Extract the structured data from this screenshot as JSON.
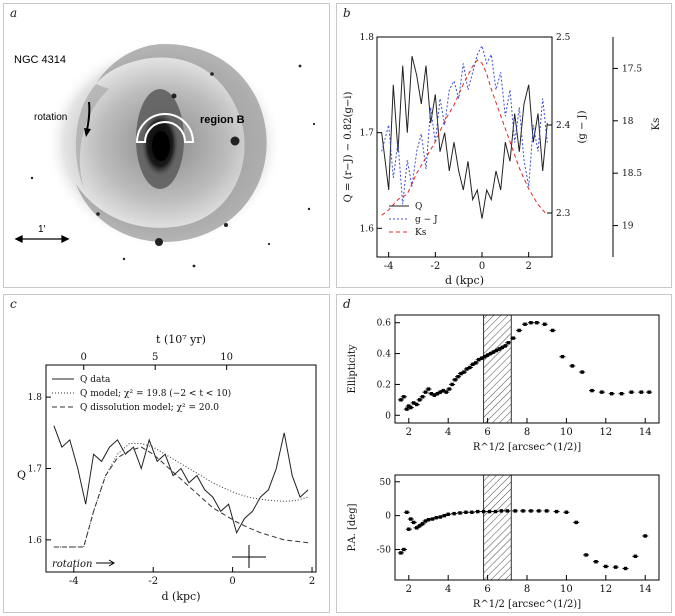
{
  "panels": {
    "a": {
      "letter": "a",
      "galaxy": "NGC 4314",
      "rotation_label": "rotation",
      "region_label": "region B",
      "scale_label": "1′"
    },
    "b": {
      "letter": "b",
      "ylabel_left": "Q = (r−J) − 0.82(g−i)",
      "ylabel_mid": "(g − J)",
      "ylabel_right": "Ks",
      "xlabel": "d (kpc)",
      "legend": [
        "Q",
        "g − J",
        "Ks"
      ]
    },
    "c": {
      "letter": "c",
      "xlabel_bottom": "d (kpc)",
      "xlabel_top": "t (10⁷ yr)",
      "ylabel": "Q",
      "legend": [
        "Q data",
        "Q model; χ² = 19.8 (−2 < t < 10)",
        "Q dissolution model; χ² = 20.0"
      ],
      "rotation_label": "rotation"
    },
    "d": {
      "letter": "d",
      "top_ylabel": "Ellipticity",
      "bottom_ylabel": "P.A. [deg]",
      "xlabel": "R^1/2 [arcsec^(1/2)]"
    }
  },
  "chart_data": [
    {
      "id": "b",
      "type": "line",
      "xlabel": "d (kpc)",
      "xlim": [
        -4.5,
        3
      ],
      "xticks": [
        -4,
        -2,
        0,
        2
      ],
      "left_axis": {
        "label": "Q = (r−J) − 0.82(g−i)",
        "ylim": [
          1.57,
          1.8
        ],
        "ticks": [
          1.6,
          1.7,
          1.8
        ],
        "reversed": true
      },
      "mid_axis": {
        "label": "(g − J)",
        "ylim": [
          2.25,
          2.5
        ],
        "ticks": [
          2.3,
          2.4,
          2.5
        ]
      },
      "right_axis": {
        "label": "Ks",
        "ylim": [
          19.3,
          17.2
        ],
        "ticks": [
          17.5,
          18,
          18.5,
          19
        ]
      },
      "series": [
        {
          "name": "Q",
          "color": "#222222",
          "dash": "",
          "x": [
            -4.3,
            -4.0,
            -3.8,
            -3.6,
            -3.4,
            -3.2,
            -3.0,
            -2.8,
            -2.6,
            -2.4,
            -2.2,
            -2.0,
            -1.8,
            -1.6,
            -1.4,
            -1.2,
            -1.0,
            -0.8,
            -0.6,
            -0.4,
            -0.2,
            0.0,
            0.2,
            0.4,
            0.6,
            0.8,
            1.0,
            1.2,
            1.4,
            1.6,
            1.8,
            2.0,
            2.2,
            2.4,
            2.6,
            2.8
          ],
          "y": [
            1.7,
            1.64,
            1.75,
            1.68,
            1.77,
            1.7,
            1.78,
            1.76,
            1.73,
            1.77,
            1.71,
            1.74,
            1.68,
            1.7,
            1.66,
            1.69,
            1.66,
            1.64,
            1.67,
            1.63,
            1.64,
            1.61,
            1.64,
            1.63,
            1.66,
            1.64,
            1.69,
            1.67,
            1.72,
            1.68,
            1.73,
            1.75,
            1.69,
            1.72,
            1.66,
            1.71
          ]
        },
        {
          "name": "g − J",
          "axis": "mid",
          "color": "#3b4bd8",
          "dash": "2,2",
          "x": [
            -4.3,
            -4.0,
            -3.8,
            -3.6,
            -3.4,
            -3.2,
            -3.0,
            -2.8,
            -2.6,
            -2.4,
            -2.2,
            -2.0,
            -1.8,
            -1.6,
            -1.4,
            -1.2,
            -1.0,
            -0.8,
            -0.6,
            -0.4,
            -0.2,
            0.0,
            0.2,
            0.4,
            0.6,
            0.8,
            1.0,
            1.2,
            1.4,
            1.6,
            1.8,
            2.0,
            2.2,
            2.4,
            2.6,
            2.8
          ],
          "y": [
            2.37,
            2.4,
            2.34,
            2.38,
            2.31,
            2.36,
            2.33,
            2.37,
            2.39,
            2.35,
            2.42,
            2.38,
            2.43,
            2.4,
            2.44,
            2.45,
            2.43,
            2.47,
            2.44,
            2.46,
            2.48,
            2.49,
            2.47,
            2.48,
            2.44,
            2.46,
            2.41,
            2.44,
            2.38,
            2.42,
            2.36,
            2.33,
            2.4,
            2.37,
            2.43,
            2.38
          ]
        },
        {
          "name": "Ks",
          "axis": "right",
          "color": "#e02828",
          "dash": "4,3",
          "x": [
            -4.3,
            -4.0,
            -3.6,
            -3.2,
            -2.8,
            -2.4,
            -2.0,
            -1.6,
            -1.2,
            -0.8,
            -0.4,
            -0.2,
            0.0,
            0.2,
            0.4,
            0.8,
            1.2,
            1.6,
            2.0,
            2.4,
            2.8
          ],
          "y": [
            18.9,
            18.85,
            18.75,
            18.7,
            18.5,
            18.35,
            18.2,
            18.0,
            17.85,
            17.65,
            17.48,
            17.42,
            17.45,
            17.55,
            17.7,
            17.95,
            18.2,
            18.45,
            18.65,
            18.8,
            18.9
          ]
        }
      ]
    },
    {
      "id": "c",
      "type": "line",
      "xlabel": "d (kpc)",
      "xlim": [
        -4.7,
        2.1
      ],
      "xticks": [
        -4,
        -2,
        0,
        2
      ],
      "ylabel": "Q",
      "ylim": [
        1.555,
        1.845
      ],
      "yticks": [
        1.6,
        1.7,
        1.8
      ],
      "top_axis": {
        "label": "t (10⁷ yr)",
        "ticks": [
          0,
          5,
          10
        ],
        "x_at_t0": -3.75,
        "kpc_per_unit": 0.36
      },
      "series": [
        {
          "name": "Q data",
          "color": "#222222",
          "dash": "",
          "x": [
            -4.5,
            -4.3,
            -4.1,
            -3.9,
            -3.7,
            -3.5,
            -3.3,
            -3.1,
            -2.9,
            -2.7,
            -2.5,
            -2.3,
            -2.1,
            -1.9,
            -1.7,
            -1.5,
            -1.3,
            -1.1,
            -0.9,
            -0.7,
            -0.5,
            -0.3,
            -0.1,
            0.1,
            0.3,
            0.5,
            0.7,
            0.9,
            1.1,
            1.3,
            1.5,
            1.7,
            1.9
          ],
          "y": [
            1.76,
            1.73,
            1.74,
            1.7,
            1.65,
            1.72,
            1.71,
            1.73,
            1.74,
            1.72,
            1.73,
            1.7,
            1.74,
            1.71,
            1.72,
            1.69,
            1.7,
            1.68,
            1.69,
            1.67,
            1.66,
            1.64,
            1.65,
            1.61,
            1.63,
            1.64,
            1.66,
            1.67,
            1.7,
            1.75,
            1.69,
            1.66,
            1.67
          ]
        },
        {
          "name": "Q model; χ² = 19.8 (−2 < t < 10)",
          "color": "#333333",
          "dash": "1,2",
          "x": [
            -4.5,
            -3.75,
            -3.5,
            -3.2,
            -2.9,
            -2.6,
            -2.3,
            -2.0,
            -1.7,
            -1.4,
            -1.1,
            -0.8,
            -0.5,
            -0.2,
            0.1,
            0.4,
            0.7,
            1.0,
            1.3,
            1.6,
            1.9
          ],
          "y": [
            1.59,
            1.59,
            1.64,
            1.69,
            1.72,
            1.735,
            1.735,
            1.73,
            1.72,
            1.71,
            1.7,
            1.69,
            1.68,
            1.672,
            1.665,
            1.66,
            1.657,
            1.655,
            1.654,
            1.655,
            1.66
          ]
        },
        {
          "name": "Q dissolution model; χ² = 20.0",
          "color": "#333333",
          "dash": "5,3",
          "x": [
            -4.5,
            -3.75,
            -3.5,
            -3.2,
            -2.9,
            -2.6,
            -2.3,
            -2.0,
            -1.7,
            -1.4,
            -1.1,
            -0.8,
            -0.5,
            -0.2,
            0.1,
            0.4,
            0.7,
            1.0,
            1.3,
            1.6,
            1.9
          ],
          "y": [
            1.59,
            1.59,
            1.64,
            1.69,
            1.715,
            1.725,
            1.73,
            1.72,
            1.705,
            1.69,
            1.675,
            1.66,
            1.645,
            1.635,
            1.625,
            1.617,
            1.61,
            1.605,
            1.6,
            1.598,
            1.596
          ]
        }
      ]
    },
    {
      "id": "d-top",
      "type": "scatter",
      "xlabel": "R^1/2 [arcsec^(1/2)]",
      "xlim": [
        1.3,
        14.7
      ],
      "xticks": [
        2,
        4,
        6,
        8,
        10,
        12,
        14
      ],
      "ylabel": "Ellipticity",
      "ylim": [
        -0.05,
        0.65
      ],
      "yticks": [
        0,
        0.2,
        0.4,
        0.6
      ],
      "shaded_x": [
        5.8,
        7.2
      ],
      "x": [
        1.6,
        1.75,
        1.9,
        2.0,
        2.1,
        2.25,
        2.4,
        2.55,
        2.7,
        2.85,
        3.0,
        3.15,
        3.3,
        3.45,
        3.6,
        3.75,
        3.9,
        4.05,
        4.2,
        4.35,
        4.5,
        4.65,
        4.8,
        4.95,
        5.1,
        5.25,
        5.4,
        5.55,
        5.7,
        5.85,
        6.0,
        6.15,
        6.3,
        6.45,
        6.6,
        6.75,
        6.9,
        7.05,
        7.3,
        7.6,
        7.9,
        8.2,
        8.5,
        8.9,
        9.3,
        9.8,
        10.3,
        10.8,
        11.3,
        11.8,
        12.3,
        12.8,
        13.3,
        13.8,
        14.2
      ],
      "y": [
        0.1,
        0.12,
        0.04,
        0.06,
        0.05,
        0.08,
        0.07,
        0.1,
        0.12,
        0.15,
        0.17,
        0.14,
        0.13,
        0.14,
        0.15,
        0.16,
        0.15,
        0.17,
        0.2,
        0.23,
        0.25,
        0.27,
        0.28,
        0.3,
        0.31,
        0.33,
        0.34,
        0.36,
        0.37,
        0.38,
        0.39,
        0.4,
        0.41,
        0.42,
        0.43,
        0.44,
        0.45,
        0.47,
        0.5,
        0.55,
        0.59,
        0.6,
        0.6,
        0.59,
        0.55,
        0.38,
        0.32,
        0.28,
        0.16,
        0.15,
        0.14,
        0.14,
        0.15,
        0.15,
        0.15
      ]
    },
    {
      "id": "d-bottom",
      "type": "scatter",
      "xlabel": "R^1/2 [arcsec^(1/2)]",
      "xlim": [
        1.3,
        14.7
      ],
      "xticks": [
        2,
        4,
        6,
        8,
        10,
        12,
        14
      ],
      "ylabel": "P.A. [deg]",
      "ylim": [
        -95,
        60
      ],
      "yticks": [
        -50,
        0,
        50
      ],
      "shaded_x": [
        5.8,
        7.2
      ],
      "x": [
        1.6,
        1.75,
        1.9,
        2.0,
        2.1,
        2.25,
        2.4,
        2.55,
        2.7,
        2.85,
        3.0,
        3.2,
        3.4,
        3.6,
        3.8,
        4.0,
        4.3,
        4.6,
        4.9,
        5.2,
        5.5,
        5.8,
        6.1,
        6.4,
        6.7,
        7.0,
        7.4,
        7.8,
        8.2,
        8.6,
        9.0,
        9.5,
        10.0,
        10.5,
        11.0,
        11.5,
        12.0,
        12.5,
        13.0,
        13.5,
        14.0
      ],
      "y": [
        -55,
        -50,
        5,
        -20,
        -5,
        -10,
        -18,
        -15,
        -12,
        -8,
        -6,
        -5,
        -3,
        -2,
        0,
        2,
        3,
        4,
        5,
        5,
        6,
        6,
        6,
        6,
        7,
        7,
        7,
        7,
        7,
        7,
        7,
        6,
        5,
        -10,
        -58,
        -68,
        -75,
        -76,
        -78,
        -60,
        -30
      ]
    }
  ]
}
